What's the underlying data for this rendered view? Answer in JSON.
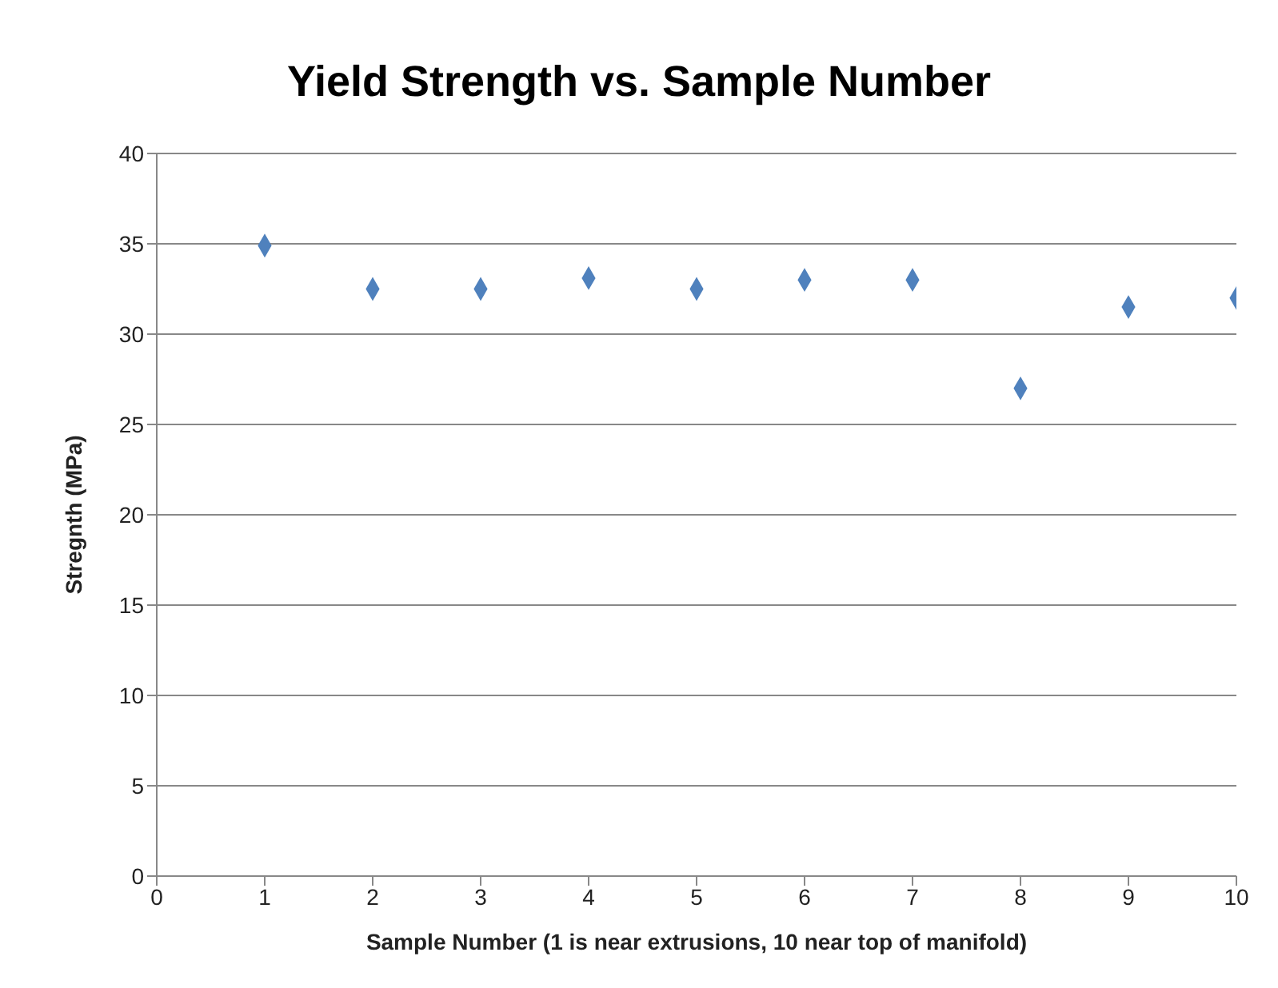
{
  "chart_data": {
    "type": "scatter",
    "title": "Yield Strength vs. Sample Number",
    "xlabel": "Sample Number (1 is near extrusions, 10 near top of manifold)",
    "ylabel": "Stregnth (MPa)",
    "x": [
      1,
      2,
      3,
      4,
      5,
      6,
      7,
      8,
      9,
      10
    ],
    "series": [
      {
        "color": "#4f81bd",
        "values": [
          34.9,
          32.5,
          32.5,
          33.1,
          32.5,
          33,
          33,
          27,
          31.5,
          32
        ]
      }
    ],
    "xlim": [
      0,
      10
    ],
    "xticks": [
      0,
      1,
      2,
      3,
      4,
      5,
      6,
      7,
      8,
      9,
      10
    ],
    "ylim": [
      0,
      40
    ],
    "yticks": [
      0,
      5,
      10,
      15,
      20,
      25,
      30,
      35,
      40
    ],
    "grid": "y",
    "marker": "diamond",
    "legend": false
  }
}
